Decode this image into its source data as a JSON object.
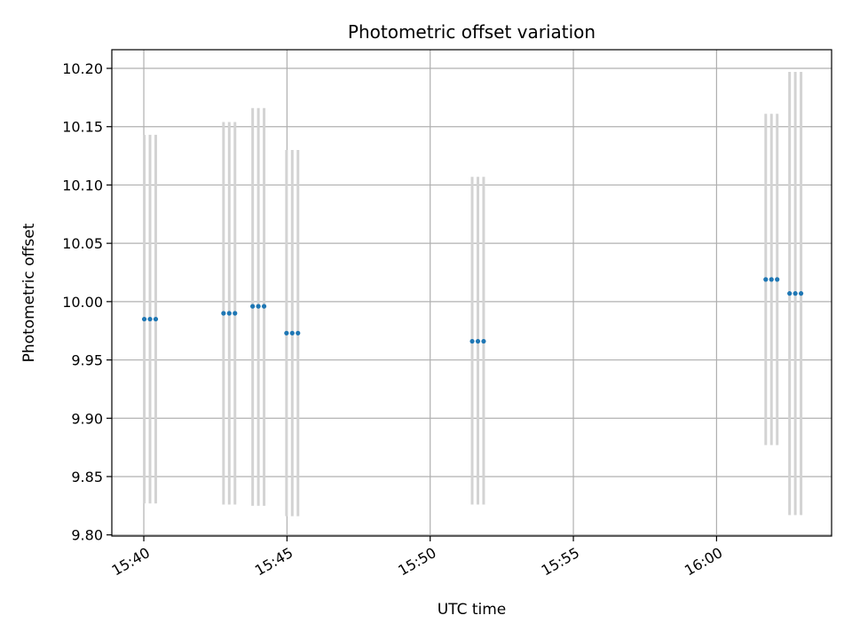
{
  "chart_data": {
    "type": "scatter",
    "title": "Photometric offset variation",
    "xlabel": "UTC time",
    "ylabel": "Photometric offset",
    "x_axis_type": "time",
    "xlim": [
      "15:38:53",
      "16:04:01"
    ],
    "ylim": [
      9.799,
      10.216
    ],
    "xticks": [
      "15:40",
      "15:45",
      "15:50",
      "15:55",
      "16:00"
    ],
    "yticks": [
      "9.80",
      "9.85",
      "9.90",
      "9.95",
      "10.00",
      "10.05",
      "10.10",
      "10.15",
      "10.20"
    ],
    "grid": true,
    "legend": "none",
    "colors": {
      "point": "#1f77b4",
      "errorbar": "#d3d3d3",
      "grid": "#b0b0b0"
    },
    "points": [
      {
        "x": "15:40:01",
        "y": 9.985,
        "ylow": 9.827,
        "yhigh": 10.143
      },
      {
        "x": "15:40:13",
        "y": 9.985,
        "ylow": 9.827,
        "yhigh": 10.143
      },
      {
        "x": "15:40:25",
        "y": 9.985,
        "ylow": 9.827,
        "yhigh": 10.143
      },
      {
        "x": "15:42:47",
        "y": 9.99,
        "ylow": 9.826,
        "yhigh": 10.154
      },
      {
        "x": "15:42:59",
        "y": 9.99,
        "ylow": 9.826,
        "yhigh": 10.154
      },
      {
        "x": "15:43:11",
        "y": 9.99,
        "ylow": 9.826,
        "yhigh": 10.154
      },
      {
        "x": "15:43:48",
        "y": 9.996,
        "ylow": 9.825,
        "yhigh": 10.166
      },
      {
        "x": "15:44:00",
        "y": 9.996,
        "ylow": 9.825,
        "yhigh": 10.166
      },
      {
        "x": "15:44:12",
        "y": 9.996,
        "ylow": 9.825,
        "yhigh": 10.166
      },
      {
        "x": "15:44:59",
        "y": 9.973,
        "ylow": 9.816,
        "yhigh": 10.13
      },
      {
        "x": "15:45:11",
        "y": 9.973,
        "ylow": 9.816,
        "yhigh": 10.13
      },
      {
        "x": "15:45:23",
        "y": 9.973,
        "ylow": 9.816,
        "yhigh": 10.13
      },
      {
        "x": "15:51:28",
        "y": 9.966,
        "ylow": 9.826,
        "yhigh": 10.107
      },
      {
        "x": "15:51:40",
        "y": 9.966,
        "ylow": 9.826,
        "yhigh": 10.107
      },
      {
        "x": "15:51:52",
        "y": 9.966,
        "ylow": 9.826,
        "yhigh": 10.107
      },
      {
        "x": "16:01:43",
        "y": 10.019,
        "ylow": 9.877,
        "yhigh": 10.161
      },
      {
        "x": "16:01:55",
        "y": 10.019,
        "ylow": 9.877,
        "yhigh": 10.161
      },
      {
        "x": "16:02:07",
        "y": 10.019,
        "ylow": 9.877,
        "yhigh": 10.161
      },
      {
        "x": "16:02:33",
        "y": 10.007,
        "ylow": 9.817,
        "yhigh": 10.197
      },
      {
        "x": "16:02:45",
        "y": 10.007,
        "ylow": 9.817,
        "yhigh": 10.197
      },
      {
        "x": "16:02:57",
        "y": 10.007,
        "ylow": 9.817,
        "yhigh": 10.197
      }
    ]
  }
}
